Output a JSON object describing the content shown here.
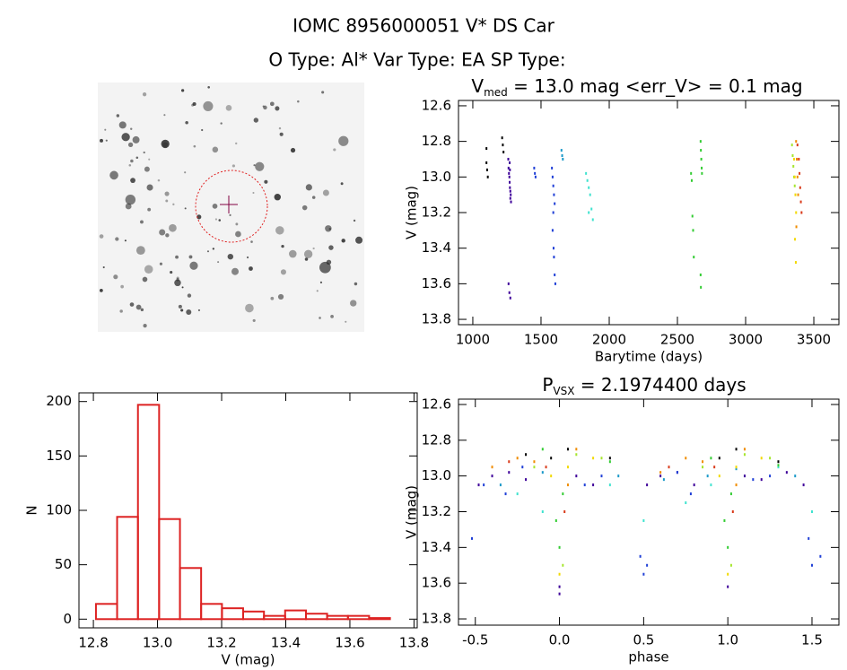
{
  "header": {
    "title": "IOMC 8956000051   V* DS Car",
    "subtitle": "O Type: Al*  Var Type: EA  SP Type:"
  },
  "chart_data": [
    {
      "type": "scatter",
      "title": [
        "V",
        "med",
        " = 13.0 mag <err_V> = 0.1 mag"
      ],
      "xlabel": "Barytime (days)",
      "ylabel": "V (mag)",
      "xlim": [
        895,
        3684
      ],
      "ylim": [
        13.83,
        12.57
      ],
      "xticks": [
        1000,
        1500,
        2000,
        2500,
        3000,
        3500
      ],
      "yticks": [
        12.6,
        12.8,
        {
          "value": 13,
          "label": "13.0"
        },
        13.2,
        13.4,
        13.6,
        13.8
      ],
      "series": [
        {
          "color": "#000000",
          "x": [
            1100,
            1100,
            1105,
            1110,
            1215,
            1220,
            1225
          ],
          "values": [
            12.84,
            12.92,
            12.96,
            13.0,
            12.78,
            12.82,
            12.86
          ]
        },
        {
          "color": "#3d0099",
          "x": [
            1260,
            1262,
            1265,
            1268,
            1270,
            1272,
            1275,
            1278,
            1280,
            1270,
            1272,
            1275,
            1262,
            1268,
            1275
          ],
          "values": [
            12.9,
            12.95,
            12.98,
            13.0,
            13.03,
            13.06,
            13.08,
            13.1,
            13.14,
            12.92,
            12.96,
            13.12,
            13.6,
            13.65,
            13.68
          ]
        },
        {
          "color": "#1f3fd6",
          "x": [
            1450,
            1455,
            1460,
            1580,
            1585,
            1590,
            1595,
            1600,
            1590,
            1585,
            1592,
            1595,
            1600,
            1605
          ],
          "values": [
            12.95,
            12.98,
            13.0,
            12.95,
            13.0,
            13.05,
            13.1,
            13.15,
            13.2,
            13.3,
            13.4,
            13.45,
            13.55,
            13.6
          ]
        },
        {
          "color": "#1a99c9",
          "x": [
            1650,
            1660,
            1655
          ],
          "values": [
            12.85,
            12.9,
            12.88
          ]
        },
        {
          "color": "#3fe3cf",
          "x": [
            1830,
            1840,
            1850,
            1860,
            1870,
            1880,
            1850
          ],
          "values": [
            12.98,
            13.02,
            13.06,
            13.1,
            13.18,
            13.24,
            13.2
          ]
        },
        {
          "color": "#33cc33",
          "x": [
            2600,
            2605,
            2610,
            2615,
            2620,
            2670,
            2672,
            2675,
            2678,
            2680,
            2670,
            2672
          ],
          "values": [
            12.98,
            13.02,
            13.22,
            13.3,
            13.45,
            12.8,
            12.85,
            12.9,
            12.95,
            12.98,
            13.55,
            13.62
          ]
        },
        {
          "color": "#a6e62e",
          "x": [
            3340,
            3345,
            3350,
            3355,
            3360
          ],
          "values": [
            12.82,
            12.88,
            12.94,
            13.0,
            13.05
          ]
        },
        {
          "color": "#f2d900",
          "x": [
            3355,
            3360,
            3365,
            3370,
            3362,
            3368
          ],
          "values": [
            12.9,
            13.0,
            13.1,
            13.2,
            13.35,
            13.48
          ]
        },
        {
          "color": "#f08c00",
          "x": [
            3370,
            3375,
            3380,
            3385,
            3372
          ],
          "values": [
            12.8,
            12.9,
            13.0,
            13.1,
            13.28
          ]
        },
        {
          "color": "#d93a1a",
          "x": [
            3380,
            3390,
            3395,
            3400,
            3405,
            3410
          ],
          "values": [
            12.82,
            12.9,
            12.98,
            13.06,
            13.14,
            13.2
          ]
        }
      ]
    },
    {
      "type": "histogram",
      "xlabel": "V (mag)",
      "ylabel": "N",
      "color": "#dd2222",
      "xlim": [
        12.755,
        13.81
      ],
      "ylim": [
        -8,
        208
      ],
      "xticks": [
        12.8,
        {
          "value": 13,
          "label": "13.0"
        },
        13.2,
        13.4,
        13.6,
        13.8
      ],
      "yticks": [
        0,
        50,
        100,
        150,
        200
      ],
      "bins": [
        12.808,
        12.874,
        12.939,
        13.005,
        13.07,
        13.136,
        13.201,
        13.267,
        13.332,
        13.398,
        13.463,
        13.529,
        13.594,
        13.66,
        13.725
      ],
      "values": [
        14,
        94,
        197,
        92,
        47,
        14,
        10,
        7,
        3,
        8,
        5,
        3,
        3,
        1
      ]
    },
    {
      "type": "scatter",
      "title": [
        "P",
        "VSX",
        " = 2.1974400 days"
      ],
      "xlabel": "phase",
      "ylabel": "V (mag)",
      "xlim": [
        -0.6,
        1.66
      ],
      "ylim": [
        13.835,
        12.57
      ],
      "xticks": [
        -0.5,
        {
          "value": 0,
          "label": "0.0"
        },
        0.5,
        {
          "value": 1,
          "label": "1.0"
        },
        1.5
      ],
      "yticks": [
        12.6,
        12.8,
        {
          "value": 13,
          "label": "13.0"
        },
        13.2,
        13.4,
        13.6,
        13.8
      ],
      "series": [
        {
          "color": "#000000",
          "x": [
            -0.05,
            0.05,
            0.95,
            1.05,
            0.3,
            1.3,
            -0.2
          ],
          "values": [
            12.9,
            12.85,
            12.9,
            12.85,
            12.9,
            12.92,
            12.88
          ]
        },
        {
          "color": "#3d0099",
          "x": [
            -0.48,
            -0.4,
            -0.3,
            -0.2,
            0.0,
            0.0,
            0.1,
            0.2,
            0.52,
            0.6,
            0.7,
            0.8,
            1.0,
            1.1,
            1.2,
            1.35,
            1.45
          ],
          "values": [
            13.05,
            13.0,
            12.98,
            13.02,
            13.62,
            13.66,
            13.0,
            13.05,
            13.05,
            13.0,
            12.98,
            13.05,
            13.62,
            13.0,
            13.02,
            12.98,
            13.05
          ]
        },
        {
          "color": "#1f3fd6",
          "x": [
            -0.52,
            -0.45,
            -0.32,
            -0.22,
            0.15,
            0.25,
            0.48,
            0.5,
            0.52,
            0.7,
            0.78,
            1.15,
            1.25,
            1.48,
            1.5,
            1.55
          ],
          "values": [
            13.35,
            13.05,
            13.1,
            12.95,
            13.05,
            13.0,
            13.45,
            13.55,
            13.5,
            12.98,
            13.1,
            13.02,
            13.0,
            13.35,
            13.5,
            13.45
          ]
        },
        {
          "color": "#1a99c9",
          "x": [
            -0.35,
            -0.1,
            0.35,
            0.62,
            0.88,
            1.05,
            1.4
          ],
          "values": [
            13.05,
            12.98,
            13.0,
            13.02,
            13.0,
            12.96,
            13.0
          ]
        },
        {
          "color": "#3fe3cf",
          "x": [
            -0.25,
            -0.1,
            0.3,
            0.5,
            0.75,
            0.9,
            1.3,
            1.5
          ],
          "values": [
            13.1,
            13.2,
            13.05,
            13.25,
            13.15,
            13.05,
            12.95,
            13.2
          ]
        },
        {
          "color": "#33cc33",
          "x": [
            -0.02,
            0.0,
            0.02,
            0.98,
            1.0,
            1.02,
            0.3,
            1.3,
            -0.1,
            0.9
          ],
          "values": [
            13.25,
            13.4,
            13.1,
            13.25,
            13.4,
            13.1,
            12.92,
            12.94,
            12.85,
            12.9
          ]
        },
        {
          "color": "#a6e62e",
          "x": [
            -0.15,
            0.02,
            0.1,
            0.25,
            0.85,
            1.02,
            1.1,
            1.25
          ],
          "values": [
            12.95,
            13.5,
            12.88,
            12.9,
            12.95,
            13.5,
            12.88,
            12.9
          ]
        },
        {
          "color": "#f2d900",
          "x": [
            -0.05,
            0.0,
            0.05,
            0.2,
            0.95,
            1.0,
            1.05,
            1.2
          ],
          "values": [
            13.0,
            13.55,
            12.95,
            12.9,
            13.0,
            13.55,
            12.95,
            12.9
          ]
        },
        {
          "color": "#f08c00",
          "x": [
            -0.4,
            -0.25,
            -0.15,
            0.05,
            0.1,
            0.6,
            0.75,
            0.85,
            1.05,
            1.1
          ],
          "values": [
            12.95,
            12.9,
            12.92,
            13.05,
            12.85,
            12.98,
            12.9,
            12.92,
            13.05,
            12.85
          ]
        },
        {
          "color": "#d93a1a",
          "x": [
            -0.3,
            -0.08,
            0.03,
            0.65,
            0.92,
            1.03
          ],
          "values": [
            12.92,
            12.95,
            13.2,
            12.95,
            12.95,
            13.2
          ]
        }
      ]
    }
  ]
}
